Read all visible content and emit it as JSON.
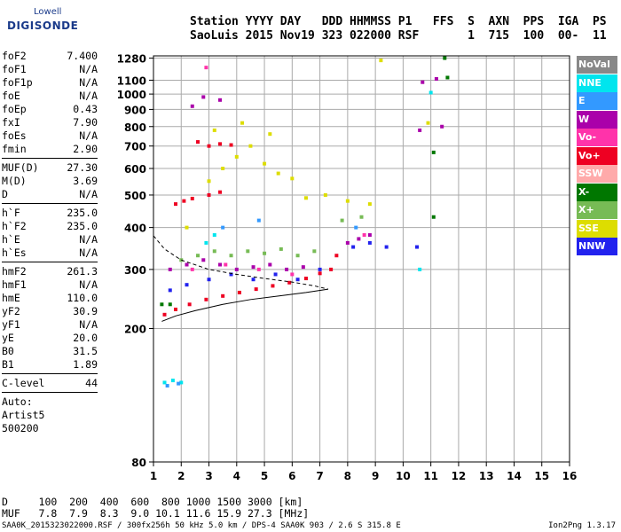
{
  "logo": {
    "line1": "Lowell",
    "line2": "DIGISONDE"
  },
  "header": {
    "line1": "Station YYYY DAY   DDD HHMMSS P1   FFS  S  AXN  PPS  IGA  PS",
    "line2": "SaoLuis 2015 Nov19 323 022000 RSF       1  715  100  00-  11"
  },
  "params": {
    "group1": [
      {
        "label": "foF2",
        "value": "7.400"
      },
      {
        "label": "foF1",
        "value": "N/A"
      },
      {
        "label": "foF1p",
        "value": "N/A"
      },
      {
        "label": "foE",
        "value": "N/A"
      },
      {
        "label": "foEp",
        "value": "0.43"
      },
      {
        "label": "fxI",
        "value": "7.90"
      },
      {
        "label": "foEs",
        "value": "N/A"
      },
      {
        "label": "fmin",
        "value": "2.90"
      }
    ],
    "group2": [
      {
        "label": "MUF(D)",
        "value": "27.30"
      },
      {
        "label": "M(D)",
        "value": "3.69"
      },
      {
        "label": "D",
        "value": "N/A"
      }
    ],
    "group3": [
      {
        "label": "h`F",
        "value": "235.0"
      },
      {
        "label": "h`F2",
        "value": "235.0"
      },
      {
        "label": "h`E",
        "value": "N/A"
      },
      {
        "label": "h`Es",
        "value": "N/A"
      }
    ],
    "group4": [
      {
        "label": "hmF2",
        "value": "261.3"
      },
      {
        "label": "hmF1",
        "value": "N/A"
      },
      {
        "label": "hmE",
        "value": "110.0"
      },
      {
        "label": "yF2",
        "value": "30.9"
      },
      {
        "label": "yF1",
        "value": "N/A"
      },
      {
        "label": "yE",
        "value": "20.0"
      },
      {
        "label": "B0",
        "value": "31.5"
      },
      {
        "label": "B1",
        "value": "1.89"
      }
    ],
    "clevel": {
      "label": "C-level",
      "value": "44"
    },
    "auto": [
      "Auto:",
      "Artist5",
      "500200"
    ]
  },
  "legend": [
    {
      "label": "NoVal",
      "color": "#888888"
    },
    {
      "label": "NNE",
      "color": "#00e5ee"
    },
    {
      "label": "E",
      "color": "#3399ff"
    },
    {
      "label": "W",
      "color": "#aa00aa"
    },
    {
      "label": "Vo-",
      "color": "#ff33aa"
    },
    {
      "label": "Vo+",
      "color": "#ee0022"
    },
    {
      "label": "SSW",
      "color": "#ffaaaa"
    },
    {
      "label": "X-",
      "color": "#007700"
    },
    {
      "label": "X+",
      "color": "#77bb55"
    },
    {
      "label": "SSE",
      "color": "#dddd00"
    },
    {
      "label": "NNW",
      "color": "#2222ee"
    }
  ],
  "footer": {
    "line1": "D     100  200  400  600  800 1000 1500 3000 [km]",
    "line2": "MUF   7.8  7.9  8.3  9.0 10.1 11.6 15.9 27.3 [MHz]",
    "line3": "SAA0K_2015323022000.RSF / 300fx256h 50 kHz 5.0 km / DPS-4 SAA0K 903 / 2.6 S 315.8 E",
    "version": "Ion2Png 1.3.17"
  },
  "chart_data": {
    "type": "scatter",
    "title": "",
    "xlabel": "",
    "ylabel": "",
    "xlim": [
      1,
      16
    ],
    "ylim": [
      80,
      1300
    ],
    "y_scale": "log",
    "x_ticks": [
      1,
      2,
      3,
      4,
      5,
      6,
      7,
      8,
      9,
      10,
      11,
      12,
      13,
      14,
      15,
      16
    ],
    "y_ticks": [
      80,
      200,
      300,
      400,
      500,
      600,
      700,
      800,
      900,
      1000,
      1100,
      1280
    ],
    "grid": true,
    "series": [
      {
        "name": "Vo+",
        "color": "#ee0022",
        "points": [
          [
            1.4,
            220
          ],
          [
            1.8,
            228
          ],
          [
            2.3,
            236
          ],
          [
            2.9,
            244
          ],
          [
            3.5,
            250
          ],
          [
            4.1,
            256
          ],
          [
            4.7,
            262
          ],
          [
            5.3,
            268
          ],
          [
            5.9,
            274
          ],
          [
            6.5,
            282
          ],
          [
            7.0,
            292
          ],
          [
            1.8,
            470
          ],
          [
            2.1,
            480
          ],
          [
            2.4,
            488
          ],
          [
            3.0,
            500
          ],
          [
            3.4,
            510
          ],
          [
            2.6,
            720
          ],
          [
            3.0,
            700
          ],
          [
            3.4,
            710
          ],
          [
            3.8,
            705
          ],
          [
            7.4,
            300
          ],
          [
            7.6,
            330
          ]
        ]
      },
      {
        "name": "W",
        "color": "#aa00aa",
        "points": [
          [
            1.6,
            300
          ],
          [
            2.2,
            310
          ],
          [
            2.8,
            320
          ],
          [
            3.4,
            310
          ],
          [
            4.0,
            300
          ],
          [
            4.6,
            305
          ],
          [
            5.2,
            310
          ],
          [
            5.8,
            300
          ],
          [
            6.4,
            305
          ],
          [
            8.0,
            360
          ],
          [
            8.4,
            370
          ],
          [
            8.8,
            380
          ],
          [
            2.4,
            920
          ],
          [
            2.8,
            980
          ],
          [
            3.4,
            960
          ],
          [
            10.7,
            1085
          ],
          [
            11.2,
            1110
          ],
          [
            11.4,
            800
          ],
          [
            10.6,
            780
          ]
        ]
      },
      {
        "name": "SSE",
        "color": "#dddd00",
        "points": [
          [
            2.2,
            400
          ],
          [
            3.0,
            550
          ],
          [
            3.5,
            600
          ],
          [
            4.0,
            650
          ],
          [
            4.5,
            700
          ],
          [
            5.0,
            620
          ],
          [
            5.5,
            580
          ],
          [
            6.0,
            560
          ],
          [
            6.5,
            490
          ],
          [
            7.2,
            500
          ],
          [
            8.0,
            480
          ],
          [
            8.8,
            470
          ],
          [
            3.2,
            780
          ],
          [
            4.2,
            820
          ],
          [
            5.2,
            760
          ],
          [
            9.2,
            1260
          ],
          [
            10.9,
            820
          ]
        ]
      },
      {
        "name": "X+",
        "color": "#77bb55",
        "points": [
          [
            2.0,
            320
          ],
          [
            2.6,
            330
          ],
          [
            3.2,
            340
          ],
          [
            3.8,
            330
          ],
          [
            4.4,
            340
          ],
          [
            5.0,
            335
          ],
          [
            5.6,
            345
          ],
          [
            6.2,
            330
          ],
          [
            6.8,
            340
          ],
          [
            7.8,
            420
          ],
          [
            8.5,
            430
          ]
        ]
      },
      {
        "name": "X-",
        "color": "#007700",
        "points": [
          [
            11.6,
            1120
          ],
          [
            11.1,
            670
          ],
          [
            11.1,
            430
          ],
          [
            11.5,
            1280
          ],
          [
            1.3,
            236
          ],
          [
            1.6,
            236
          ]
        ]
      },
      {
        "name": "NNW",
        "color": "#2222ee",
        "points": [
          [
            1.6,
            260
          ],
          [
            2.2,
            270
          ],
          [
            3.0,
            280
          ],
          [
            3.8,
            290
          ],
          [
            4.6,
            280
          ],
          [
            5.4,
            290
          ],
          [
            6.2,
            280
          ],
          [
            7.0,
            300
          ],
          [
            8.2,
            350
          ],
          [
            8.8,
            360
          ],
          [
            9.4,
            350
          ],
          [
            10.5,
            350
          ]
        ]
      },
      {
        "name": "NNE",
        "color": "#00e5ee",
        "points": [
          [
            1.4,
            138
          ],
          [
            1.7,
            140
          ],
          [
            2.0,
            138
          ],
          [
            2.9,
            360
          ],
          [
            3.2,
            380
          ],
          [
            11.0,
            1010
          ],
          [
            10.6,
            300
          ]
        ]
      },
      {
        "name": "E",
        "color": "#3399ff",
        "points": [
          [
            1.5,
            135
          ],
          [
            1.9,
            137
          ],
          [
            3.5,
            400
          ],
          [
            4.8,
            420
          ],
          [
            8.3,
            400
          ]
        ]
      },
      {
        "name": "Vo-",
        "color": "#ff33aa",
        "points": [
          [
            2.4,
            300
          ],
          [
            3.6,
            310
          ],
          [
            4.8,
            300
          ],
          [
            6.0,
            290
          ],
          [
            8.6,
            380
          ],
          [
            2.9,
            1200
          ]
        ]
      }
    ],
    "profile_line": {
      "x": [
        1.0,
        1.4,
        2.0,
        3.0,
        4.0,
        5.0,
        6.0,
        6.8,
        7.3
      ],
      "y": [
        378,
        345,
        320,
        300,
        290,
        282,
        275,
        268,
        262
      ]
    },
    "leading_edge": {
      "x": [
        1.3,
        1.8,
        2.5,
        3.5,
        4.5,
        5.5,
        6.5,
        7.3
      ],
      "y": [
        210,
        218,
        226,
        236,
        244,
        250,
        256,
        262
      ]
    }
  }
}
